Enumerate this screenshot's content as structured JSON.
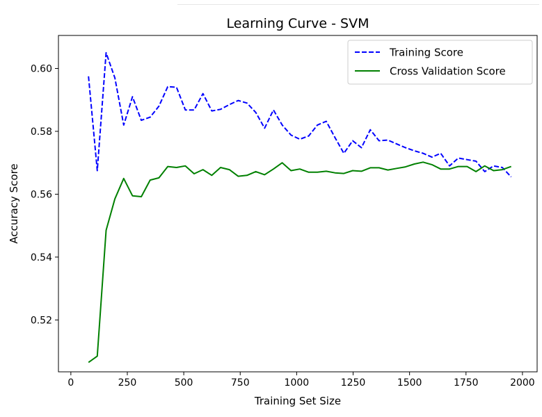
{
  "chart_data": {
    "type": "line",
    "title": "Learning Curve - SVM",
    "xlabel": "Training Set Size",
    "ylabel": "Accuracy Score",
    "xlim": [
      -55,
      2065
    ],
    "ylim": [
      0.5035,
      0.6105
    ],
    "xticks": [
      0,
      250,
      500,
      750,
      1000,
      1250,
      1500,
      1750,
      2000
    ],
    "yticks": [
      0.52,
      0.54,
      0.56,
      0.58,
      0.6
    ],
    "ytick_format": 2,
    "grid": false,
    "legend_position": "upper right",
    "series": [
      {
        "name": "Training Score",
        "color": "#0000ff",
        "dashed": true,
        "x": [
          78,
          117,
          156,
          195,
          234,
          273,
          312,
          351,
          390,
          429,
          468,
          507,
          546,
          585,
          624,
          663,
          702,
          741,
          780,
          819,
          858,
          897,
          936,
          975,
          1014,
          1053,
          1092,
          1131,
          1170,
          1209,
          1248,
          1287,
          1326,
          1365,
          1404,
          1443,
          1482,
          1521,
          1560,
          1599,
          1638,
          1677,
          1716,
          1755,
          1794,
          1833,
          1872,
          1911,
          1950
        ],
        "values": [
          0.5975,
          0.5675,
          0.605,
          0.597,
          0.582,
          0.591,
          0.5835,
          0.5845,
          0.588,
          0.5942,
          0.594,
          0.5868,
          0.5868,
          0.592,
          0.5865,
          0.587,
          0.5885,
          0.5898,
          0.589,
          0.586,
          0.581,
          0.5868,
          0.582,
          0.5788,
          0.5775,
          0.5785,
          0.582,
          0.5832,
          0.578,
          0.573,
          0.577,
          0.5748,
          0.5805,
          0.577,
          0.5772,
          0.576,
          0.5748,
          0.5738,
          0.573,
          0.5718,
          0.573,
          0.569,
          0.5715,
          0.571,
          0.5705,
          0.5672,
          0.569,
          0.5685,
          0.5655
        ]
      },
      {
        "name": "Cross Validation Score",
        "color": "#008000",
        "dashed": false,
        "x": [
          78,
          117,
          156,
          195,
          234,
          273,
          312,
          351,
          390,
          429,
          468,
          507,
          546,
          585,
          624,
          663,
          702,
          741,
          780,
          819,
          858,
          897,
          936,
          975,
          1014,
          1053,
          1092,
          1131,
          1170,
          1209,
          1248,
          1287,
          1326,
          1365,
          1404,
          1443,
          1482,
          1521,
          1560,
          1599,
          1638,
          1677,
          1716,
          1755,
          1794,
          1833,
          1872,
          1911,
          1950
        ],
        "values": [
          0.5065,
          0.5085,
          0.5485,
          0.5585,
          0.565,
          0.5595,
          0.5592,
          0.5645,
          0.5652,
          0.5688,
          0.5685,
          0.569,
          0.5665,
          0.5678,
          0.566,
          0.5685,
          0.5678,
          0.5657,
          0.566,
          0.5672,
          0.5662,
          0.568,
          0.57,
          0.5675,
          0.568,
          0.567,
          0.567,
          0.5673,
          0.5668,
          0.5666,
          0.5675,
          0.5673,
          0.5684,
          0.5684,
          0.5677,
          0.5682,
          0.5687,
          0.5696,
          0.5702,
          0.5694,
          0.568,
          0.568,
          0.5688,
          0.5688,
          0.5672,
          0.569,
          0.5675,
          0.5678,
          0.5688
        ]
      }
    ]
  }
}
